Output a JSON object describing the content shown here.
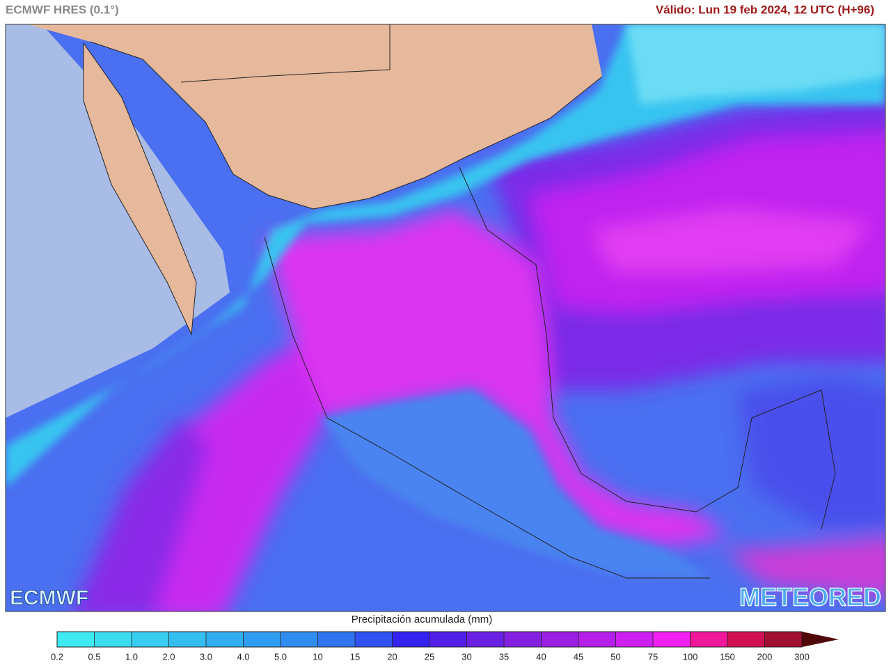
{
  "header": {
    "title": "ECMWF HRES (0.1°)",
    "valid": "Válido: Lun 19 feb 2024, 12 UTC (H+96)"
  },
  "map": {
    "logos": [
      "ECMWF",
      "METEORED"
    ]
  },
  "colorbar": {
    "label": "Precipitación acumulada (mm)",
    "ticks": [
      "0.2",
      "0.5",
      "1.0",
      "2.0",
      "3.0",
      "4.0",
      "5.0",
      "10",
      "15",
      "20",
      "25",
      "30",
      "35",
      "40",
      "45",
      "50",
      "75",
      "100",
      "150",
      "200",
      "300"
    ],
    "colors": [
      "#40eaf2",
      "#3cdcf0",
      "#38cdf0",
      "#34bef0",
      "#30aef0",
      "#309ef0",
      "#308cf0",
      "#3074f0",
      "#3052f0",
      "#3422f0",
      "#5220e8",
      "#6a20e2",
      "#8420e2",
      "#9c20e4",
      "#b420e8",
      "#cc20f0",
      "#f020f0",
      "#f0189a",
      "#d01050",
      "#a01030",
      "#801018",
      "#500808"
    ]
  }
}
